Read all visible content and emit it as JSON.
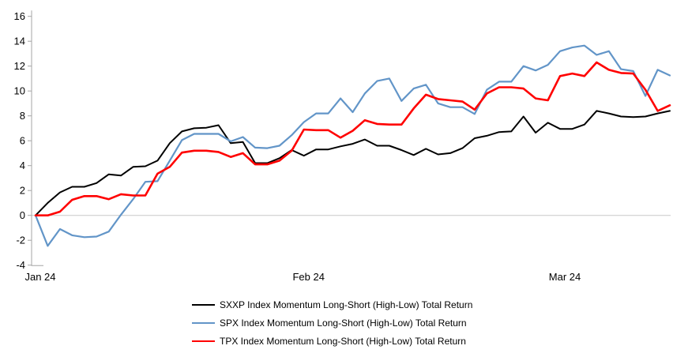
{
  "chart_data": {
    "type": "line",
    "title": "",
    "xlabel": "",
    "ylabel": "",
    "ylim": [
      -4,
      16
    ],
    "y_tick_step": 2,
    "y_ticks": [
      -4,
      -2,
      0,
      2,
      4,
      6,
      8,
      10,
      12,
      14,
      16
    ],
    "gridline_at": 0,
    "grid": "zero-line-only",
    "legend_position": "bottom-left",
    "x_point_count": 53,
    "x_ticks": [
      {
        "label": "Jan 24",
        "index": 0
      },
      {
        "label": "Feb 24",
        "index": 22
      },
      {
        "label": "Mar 24",
        "index": 43
      }
    ],
    "series": [
      {
        "key": "sxxp",
        "name": "SXXP Index Momentum Long-Short (High-Low) Total Return",
        "color": "#000000",
        "values": [
          0,
          1.0,
          1.85,
          2.3,
          2.3,
          2.6,
          3.3,
          3.2,
          3.9,
          3.95,
          4.4,
          5.8,
          6.75,
          7.0,
          7.05,
          7.25,
          5.8,
          5.9,
          4.2,
          4.2,
          4.6,
          5.25,
          4.8,
          5.3,
          5.3,
          5.55,
          5.75,
          6.1,
          5.6,
          5.6,
          5.25,
          4.85,
          5.35,
          4.9,
          5.0,
          5.4,
          6.2,
          6.4,
          6.7,
          6.75,
          7.95,
          6.65,
          7.45,
          6.95,
          6.95,
          7.3,
          8.4,
          8.2,
          7.95,
          7.9,
          7.95,
          8.2,
          8.4
        ]
      },
      {
        "key": "spx",
        "name": "SPX Index Momentum Long-Short (High-Low) Total Return",
        "color": "#6295C8",
        "values": [
          0,
          -2.45,
          -1.1,
          -1.6,
          -1.75,
          -1.7,
          -1.3,
          0.05,
          1.3,
          2.7,
          2.75,
          4.4,
          6.05,
          6.55,
          6.55,
          6.55,
          5.95,
          6.3,
          5.45,
          5.4,
          5.6,
          6.45,
          7.5,
          8.2,
          8.2,
          9.4,
          8.3,
          9.8,
          10.8,
          11.0,
          9.2,
          10.2,
          10.5,
          9.0,
          8.7,
          8.7,
          8.15,
          10.1,
          10.75,
          10.75,
          12.0,
          11.65,
          12.1,
          13.2,
          13.5,
          13.65,
          12.9,
          13.2,
          11.75,
          11.6,
          9.6,
          11.7,
          11.25
        ]
      },
      {
        "key": "tpx",
        "name": "TPX Index Momentum Long-Short (High-Low) Total Return",
        "color": "#FF0000",
        "values": [
          0,
          0,
          0.3,
          1.25,
          1.55,
          1.55,
          1.3,
          1.7,
          1.6,
          1.6,
          3.35,
          3.9,
          5.05,
          5.2,
          5.2,
          5.1,
          4.7,
          5.0,
          4.1,
          4.1,
          4.4,
          5.2,
          6.9,
          6.85,
          6.85,
          6.25,
          6.8,
          7.65,
          7.35,
          7.3,
          7.3,
          8.6,
          9.7,
          9.35,
          9.25,
          9.15,
          8.5,
          9.8,
          10.3,
          10.3,
          10.2,
          9.4,
          9.25,
          11.2,
          11.4,
          11.2,
          12.3,
          11.7,
          11.45,
          11.4,
          10.1,
          8.4,
          8.85
        ]
      }
    ]
  },
  "colors": {
    "background": "#FFFFFF",
    "axis": "#A6A6A6",
    "gridline": "#C9C9C9",
    "tick_label": "#000000"
  }
}
